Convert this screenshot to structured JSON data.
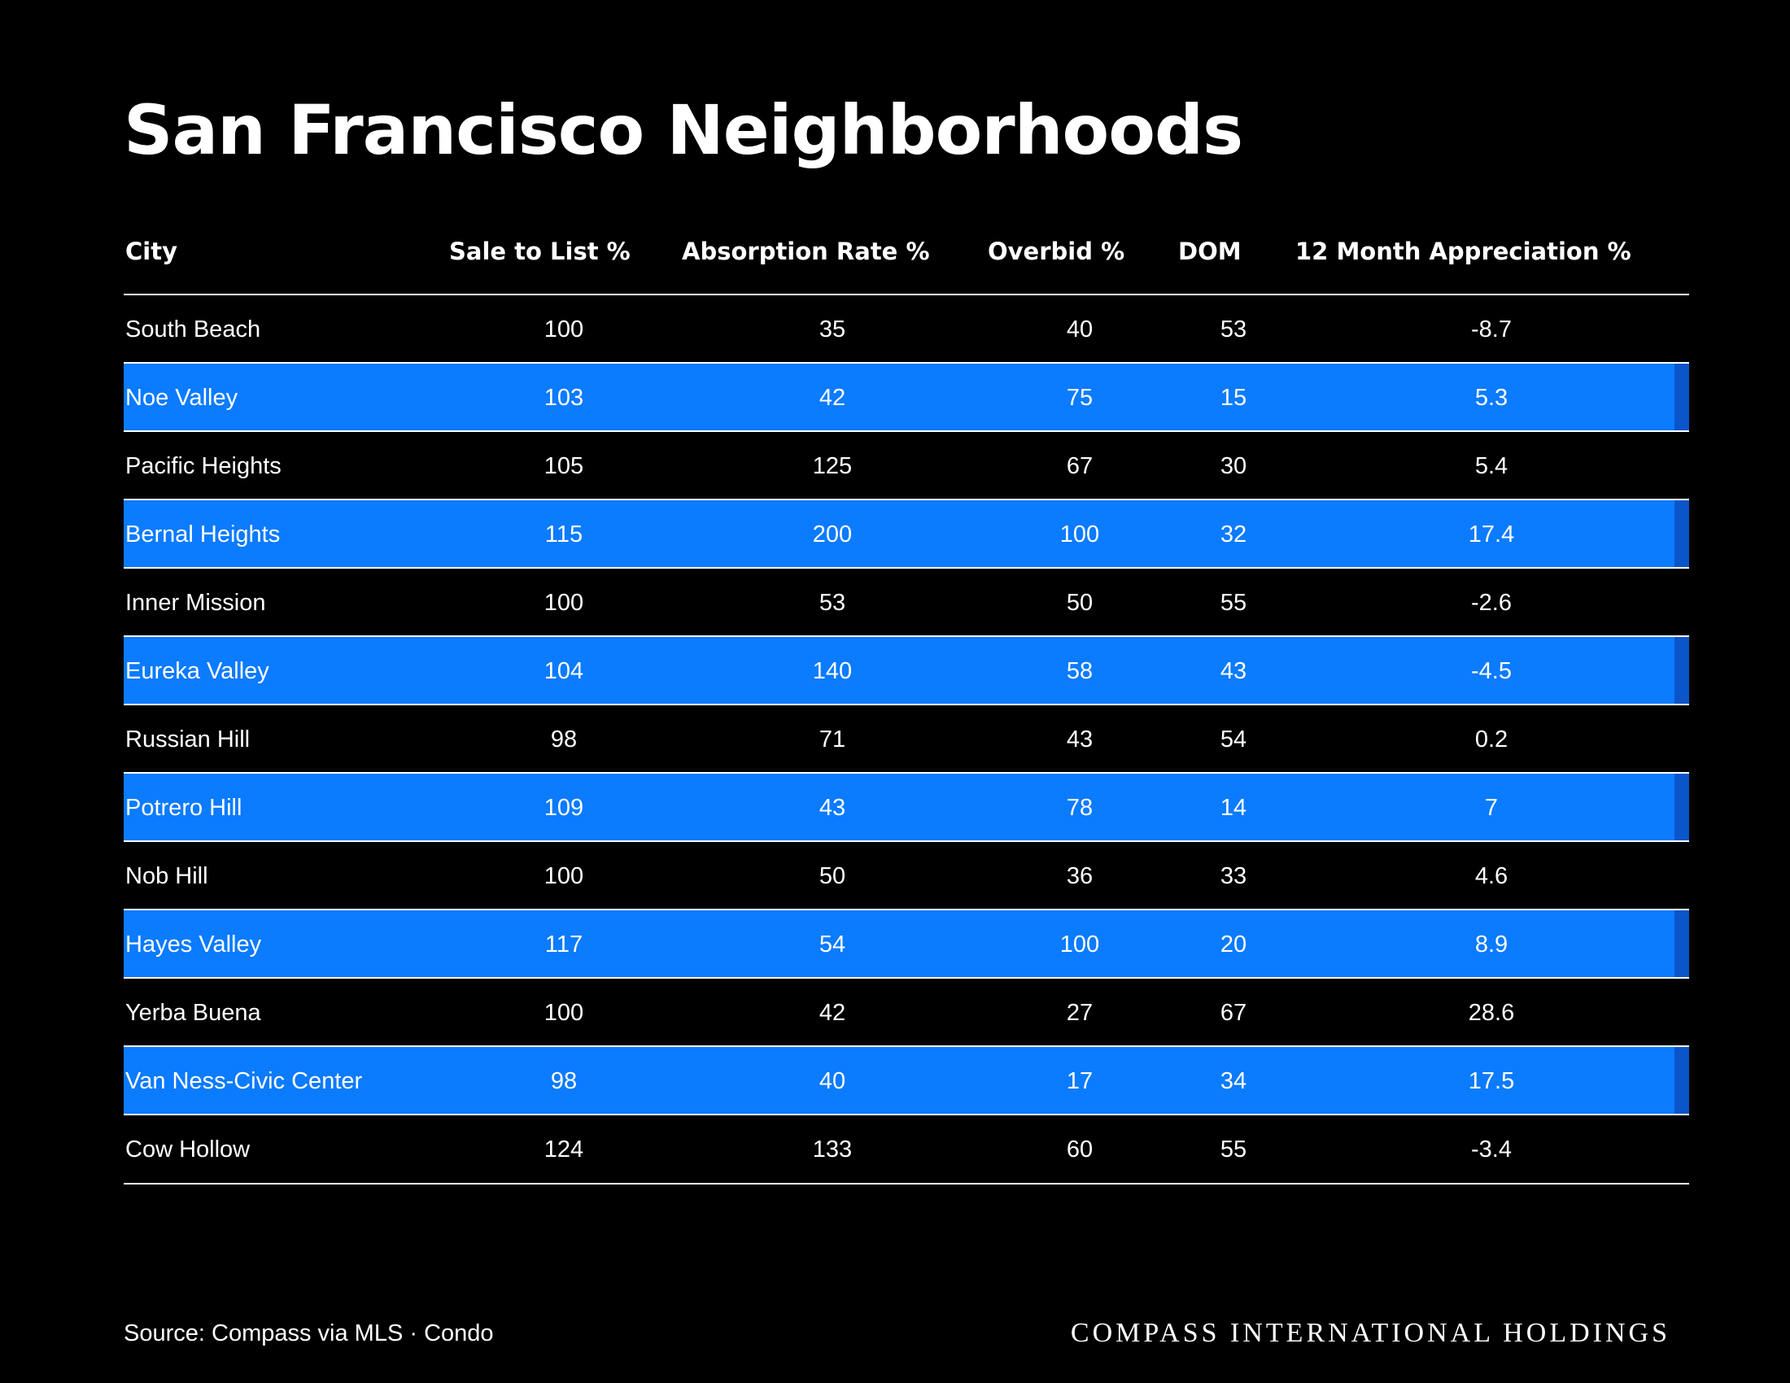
{
  "chart_data": {
    "type": "table",
    "title": "San Francisco Neighborhoods",
    "columns": [
      "City",
      "Sale to List %",
      "Absorption Rate %",
      "Overbid %",
      "DOM",
      "12 Month Appreciation %"
    ],
    "rows": [
      {
        "city": "South Beach",
        "sale_to_list": "100",
        "absorption_rate": "35",
        "overbid": "40",
        "dom": "53",
        "appreciation": "-8.7"
      },
      {
        "city": "Noe Valley",
        "sale_to_list": "103",
        "absorption_rate": "42",
        "overbid": "75",
        "dom": "15",
        "appreciation": "5.3"
      },
      {
        "city": "Pacific Heights",
        "sale_to_list": "105",
        "absorption_rate": "125",
        "overbid": "67",
        "dom": "30",
        "appreciation": "5.4"
      },
      {
        "city": "Bernal Heights",
        "sale_to_list": "115",
        "absorption_rate": "200",
        "overbid": "100",
        "dom": "32",
        "appreciation": "17.4"
      },
      {
        "city": "Inner Mission",
        "sale_to_list": "100",
        "absorption_rate": "53",
        "overbid": "50",
        "dom": "55",
        "appreciation": "-2.6"
      },
      {
        "city": "Eureka Valley",
        "sale_to_list": "104",
        "absorption_rate": "140",
        "overbid": "58",
        "dom": "43",
        "appreciation": "-4.5"
      },
      {
        "city": "Russian Hill",
        "sale_to_list": "98",
        "absorption_rate": "71",
        "overbid": "43",
        "dom": "54",
        "appreciation": "0.2"
      },
      {
        "city": "Potrero Hill",
        "sale_to_list": "109",
        "absorption_rate": "43",
        "overbid": "78",
        "dom": "14",
        "appreciation": "7"
      },
      {
        "city": "Nob Hill",
        "sale_to_list": "100",
        "absorption_rate": "50",
        "overbid": "36",
        "dom": "33",
        "appreciation": "4.6"
      },
      {
        "city": "Hayes Valley",
        "sale_to_list": "117",
        "absorption_rate": "54",
        "overbid": "100",
        "dom": "20",
        "appreciation": "8.9"
      },
      {
        "city": "Yerba Buena",
        "sale_to_list": "100",
        "absorption_rate": "42",
        "overbid": "27",
        "dom": "67",
        "appreciation": "28.6"
      },
      {
        "city": "Van Ness-Civic Center",
        "sale_to_list": "98",
        "absorption_rate": "40",
        "overbid": "17",
        "dom": "34",
        "appreciation": "17.5"
      },
      {
        "city": "Cow Hollow",
        "sale_to_list": "124",
        "absorption_rate": "133",
        "overbid": "60",
        "dom": "55",
        "appreciation": "-3.4"
      }
    ],
    "highlight_color": "#0b7bff",
    "highlight_edge_color": "#0a55c9",
    "background_color": "#000000"
  },
  "footer": {
    "source": "Source: Compass via MLS · Condo",
    "brand": "COMPASS INTERNATIONAL HOLDINGS"
  }
}
